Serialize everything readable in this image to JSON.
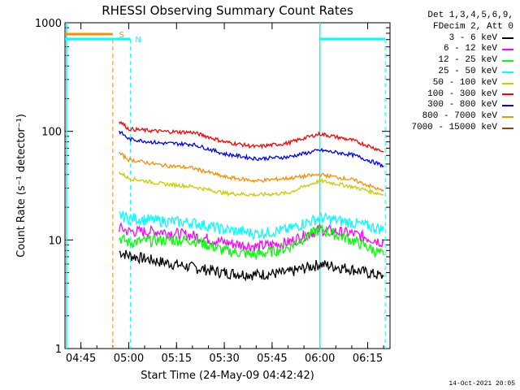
{
  "chart_data": {
    "type": "line",
    "title": "RHESSI Observing Summary Count Rates",
    "xlabel": "Start Time (24-May-09 04:42:42)",
    "ylabel": "Count Rate (s⁻¹ detector⁻¹)",
    "y_scale": "log",
    "ylim": [
      1,
      1000
    ],
    "xlim_minutes_after_0400": [
      40,
      142
    ],
    "x_tick_labels": [
      "04:45",
      "05:00",
      "05:15",
      "05:30",
      "05:45",
      "06:00",
      "06:15"
    ],
    "x_tick_minutes_after_0400": [
      45,
      60,
      75,
      90,
      105,
      120,
      135
    ],
    "y_tick_labels": [
      "1",
      "10",
      "100",
      "1000"
    ],
    "y_tick_values": [
      1,
      10,
      100,
      1000
    ],
    "legend_header": [
      "Det 1,3,4,5,6,9,",
      "FDecim 2, Att 0"
    ],
    "series": [
      {
        "name": "3 - 6 keV",
        "color": "#000000",
        "x": [
          57,
          60,
          70,
          80,
          90,
          100,
          110,
          120,
          130,
          140
        ],
        "values": [
          7.8,
          7.2,
          6.3,
          5.6,
          5.0,
          4.8,
          5.0,
          6.0,
          5.4,
          4.6
        ]
      },
      {
        "name": "6 - 12 keV",
        "color": "#ff00ff",
        "x": [
          57,
          60,
          70,
          80,
          90,
          100,
          110,
          120,
          130,
          140
        ],
        "values": [
          13,
          12,
          12,
          11,
          9.5,
          8.7,
          9.5,
          12.5,
          11.5,
          9.5
        ]
      },
      {
        "name": "12 - 25 keV",
        "color": "#00ff00",
        "x": [
          57,
          60,
          70,
          80,
          90,
          100,
          110,
          120,
          130,
          140
        ],
        "values": [
          10.5,
          9.5,
          10,
          10,
          8,
          7.3,
          8.5,
          12.5,
          10,
          7.2
        ]
      },
      {
        "name": "25 - 50 keV",
        "color": "#00ffff",
        "x": [
          57,
          60,
          70,
          80,
          90,
          100,
          110,
          120,
          130,
          140
        ],
        "values": [
          17,
          16,
          15,
          14.5,
          12.5,
          11.5,
          12.5,
          16,
          14.5,
          12.5
        ]
      },
      {
        "name": "50 - 100 keV",
        "color": "#cccc00",
        "x": [
          57,
          60,
          70,
          80,
          90,
          100,
          110,
          120,
          130,
          140
        ],
        "values": [
          42,
          37,
          33,
          31,
          27,
          26,
          27,
          35,
          31,
          26
        ]
      },
      {
        "name": "100 - 300 keV",
        "color": "#ff0000",
        "x": [
          57,
          60,
          70,
          80,
          90,
          100,
          110,
          120,
          130,
          140
        ],
        "values": [
          125,
          105,
          100,
          98,
          80,
          72,
          78,
          95,
          83,
          65
        ]
      },
      {
        "name": "300 - 800 keV",
        "color": "#0000ff",
        "x": [
          57,
          60,
          70,
          80,
          90,
          100,
          110,
          120,
          130,
          140
        ],
        "values": [
          100,
          85,
          78,
          76,
          62,
          56,
          58,
          67,
          61,
          48
        ]
      },
      {
        "name": "800 - 7000 keV",
        "color": "#ff8c00",
        "x": [
          57,
          60,
          70,
          80,
          90,
          100,
          110,
          120,
          130,
          140
        ],
        "values": [
          63,
          55,
          49,
          46,
          38,
          35,
          37,
          40,
          36,
          28
        ]
      },
      {
        "name": "7000 - 15000 keV",
        "color": "#8b4513",
        "x": [],
        "values": []
      }
    ],
    "annotations": [
      {
        "text": "S",
        "color": "#ff8c00"
      },
      {
        "text": "N",
        "color": "#00ffff"
      }
    ],
    "footer": "14-Oct-2021 20:05"
  }
}
